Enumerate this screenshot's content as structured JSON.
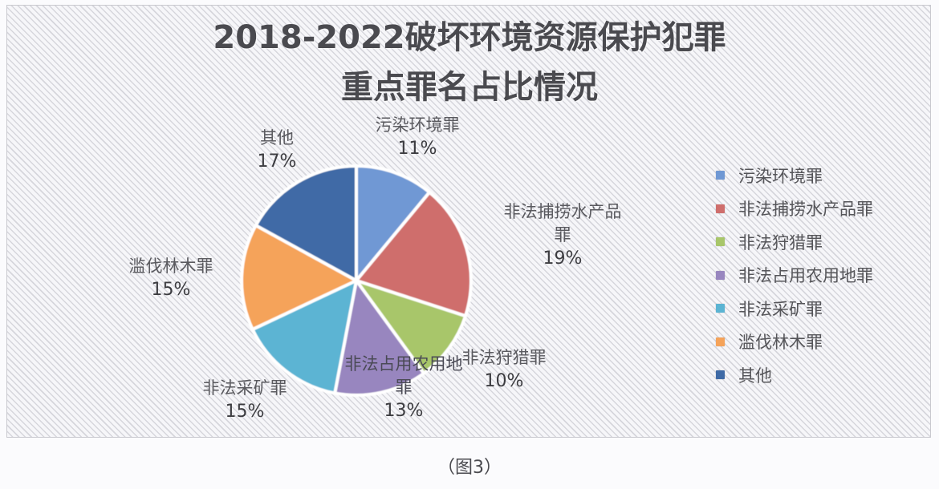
{
  "chart_data": {
    "type": "pie",
    "title": "2018-2022破坏环境资源保护犯罪重点罪名占比情况",
    "title_lines": [
      "2018-2022破坏环境资源保护犯罪",
      "重点罪名占比情况"
    ],
    "categories": [
      "污染环境罪",
      "非法捕捞水产品罪",
      "非法狩猎罪",
      "非法占用农用地罪",
      "非法采矿罪",
      "滥伐林木罪",
      "其他"
    ],
    "values": [
      11,
      19,
      10,
      13,
      15,
      15,
      17
    ],
    "unit": "%",
    "colors": [
      "#6f98d4",
      "#cf6e6c",
      "#a8c66a",
      "#9886bf",
      "#5bb4d3",
      "#f5a35a",
      "#3f6aa6"
    ],
    "data_labels": [
      {
        "name": "污染环境罪",
        "pct": "11%"
      },
      {
        "name": "非法捕捞水产品罪",
        "pct": "19%"
      },
      {
        "name": "非法狩猎罪",
        "pct": "10%"
      },
      {
        "name": "非法占用农用地罪",
        "pct": "13%"
      },
      {
        "name": "非法采矿罪",
        "pct": "15%"
      },
      {
        "name": "滥伐林木罪",
        "pct": "15%"
      },
      {
        "name": "其他",
        "pct": "17%"
      }
    ],
    "legend_position": "right",
    "start_angle": "12 o'clock, clockwise",
    "xlabel": "",
    "ylabel": ""
  },
  "legend": {
    "items": [
      {
        "label": "污染环境罪",
        "color": "#6f98d4"
      },
      {
        "label": "非法捕捞水产品罪",
        "color": "#cf6e6c"
      },
      {
        "label": "非法狩猎罪",
        "color": "#a8c66a"
      },
      {
        "label": "非法占用农用地罪",
        "color": "#9886bf"
      },
      {
        "label": "非法采矿罪",
        "color": "#5bb4d3"
      },
      {
        "label": "滥伐林木罪",
        "color": "#f5a35a"
      },
      {
        "label": "其他",
        "color": "#3f6aa6"
      }
    ]
  },
  "labels": {
    "pollution": {
      "name": "污染环境罪",
      "pct": "11%"
    },
    "fishing": {
      "name_line1": "非法捕捞水产品",
      "name_line2": "罪",
      "pct": "19%"
    },
    "hunting": {
      "name": "非法狩猎罪",
      "pct": "10%"
    },
    "farmland": {
      "name_line1": "非法占用农用地",
      "name_line2": "罪",
      "pct": "13%"
    },
    "mining": {
      "name": "非法采矿罪",
      "pct": "15%"
    },
    "logging": {
      "name": "滥伐林木罪",
      "pct": "15%"
    },
    "other": {
      "name": "其他",
      "pct": "17%"
    }
  },
  "caption": "（图3）"
}
